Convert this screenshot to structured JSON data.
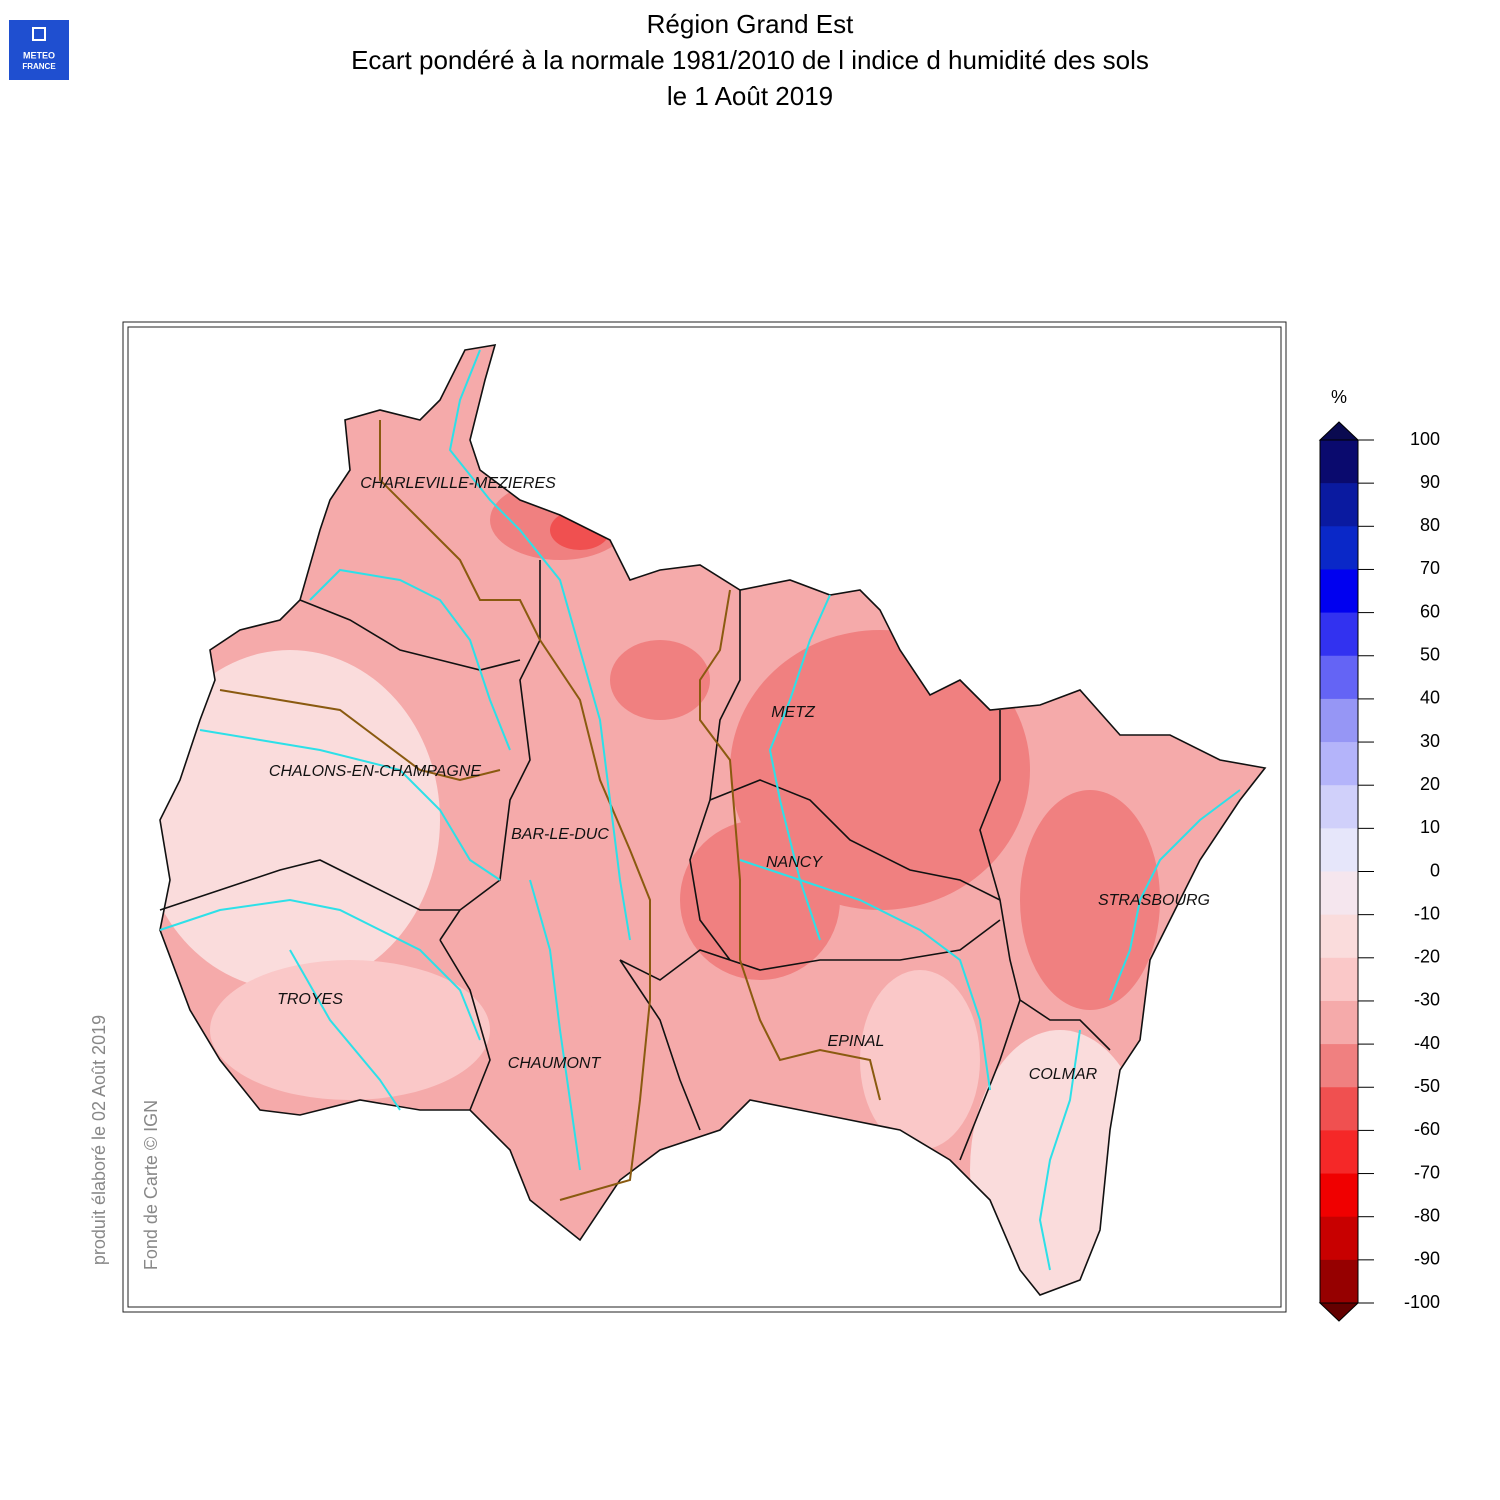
{
  "header": {
    "logo_lines": [
      "METEO",
      "FRANCE"
    ],
    "title_lines": [
      "Région Grand Est",
      "Ecart pondéré à la normale 1981/2010 de l indice d humidité des sols",
      "le 1 Août 2019"
    ]
  },
  "map": {
    "cities": [
      "CHARLEVILLE-MEZIERES",
      "METZ",
      "CHALONS-EN-CHAMPAGNE",
      "BAR-LE-DUC",
      "NANCY",
      "STRASBOURG",
      "TROYES",
      "EPINAL",
      "CHAUMONT",
      "COLMAR"
    ]
  },
  "colorbar": {
    "unit": "%",
    "ticks": [
      100,
      90,
      80,
      70,
      60,
      50,
      40,
      30,
      20,
      10,
      0,
      -10,
      -20,
      -30,
      -40,
      -50,
      -60,
      -70,
      -80,
      -90,
      -100
    ],
    "lim": [
      -100,
      100
    ],
    "colors": [
      "#0a0a6e",
      "#0a1aa0",
      "#0a28c8",
      "#0000f0",
      "#3232f0",
      "#6464f5",
      "#9696f5",
      "#b4b4fa",
      "#d0d0fa",
      "#e6e6fa",
      "#f5e6ee",
      "#fadcdc",
      "#fac8c8",
      "#f5aaaa",
      "#f08080",
      "#f05050",
      "#f52828",
      "#f00000",
      "#c80000",
      "#960000"
    ],
    "over_color": "#0a0a50",
    "under_color": "#640000"
  },
  "footer": {
    "produced": "produit élaboré le 02 Août 2019",
    "credit": "Fond de Carte © IGN"
  }
}
